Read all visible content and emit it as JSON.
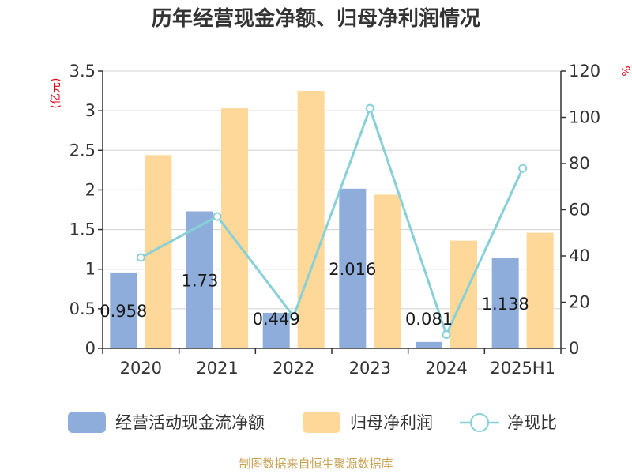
{
  "colors": {
    "cash_flow": "#8eadda",
    "net_profit": "#fdd899",
    "ratio": "#88d0d8",
    "unit": "#e60012",
    "source": "#c8a050"
  },
  "chart_data": {
    "type": "bar",
    "title": "历年经营现金净额、归母净利润情况",
    "categories": [
      "2020",
      "2021",
      "2022",
      "2023",
      "2024",
      "2025H1"
    ],
    "left_axis": {
      "unit": "(亿元)",
      "ylim": [
        0,
        3.5
      ],
      "ticks": [
        "0",
        "0.5",
        "1",
        "1.5",
        "2",
        "2.5",
        "3",
        "3.5"
      ]
    },
    "right_axis": {
      "unit": "%",
      "ylim": [
        0,
        120
      ],
      "ticks": [
        "0",
        "20",
        "40",
        "60",
        "80",
        "100",
        "120"
      ]
    },
    "grid": true,
    "legend_position": "bottom",
    "series": [
      {
        "name": "经营活动现金流净额",
        "type": "bar",
        "axis": "left",
        "values": [
          0.958,
          1.73,
          0.449,
          2.016,
          0.081,
          1.138
        ],
        "labels": [
          "0.958",
          "1.73",
          "0.449",
          "2.016",
          "0.081",
          "1.138"
        ]
      },
      {
        "name": "归母净利润",
        "type": "bar",
        "axis": "left",
        "values": [
          2.44,
          3.03,
          3.25,
          1.94,
          1.36,
          1.46
        ]
      },
      {
        "name": "净现比",
        "type": "line",
        "axis": "right",
        "values": [
          39.3,
          57.1,
          13.8,
          103.9,
          6.0,
          77.9
        ]
      }
    ]
  },
  "footer": {
    "source": "制图数据来自恒生聚源数据库"
  }
}
